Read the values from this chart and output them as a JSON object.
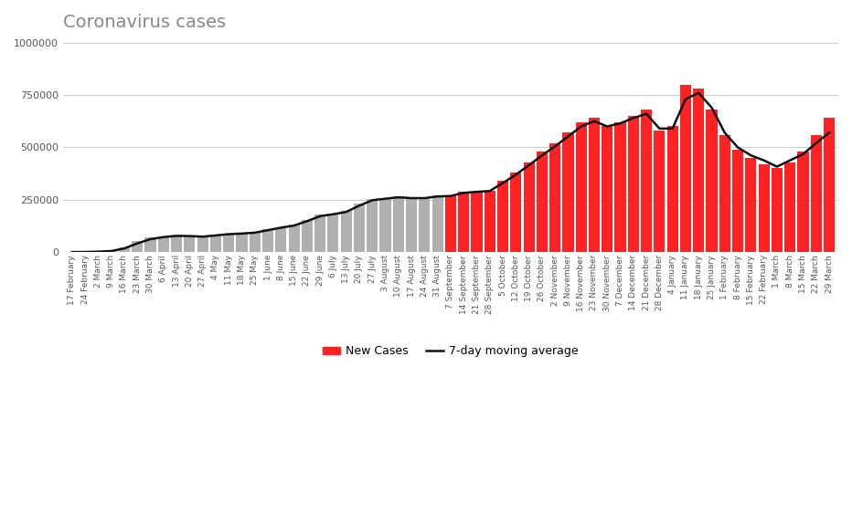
{
  "title": "Coronavirus cases",
  "title_color": "#888888",
  "title_fontsize": 14,
  "bar_color_early": "#b0b0b0",
  "bar_color_late": "#ff2222",
  "line_color": "#111111",
  "background_color": "#ffffff",
  "grid_color": "#cccccc",
  "ylim": [
    0,
    1000000
  ],
  "yticks": [
    0,
    250000,
    500000,
    750000,
    1000000
  ],
  "ytick_labels": [
    "0",
    "250000",
    "500000",
    "750000",
    "1000000"
  ],
  "legend_new_cases": "New Cases",
  "legend_ma": "7-day moving average",
  "dates": [
    "17 February",
    "24 February",
    "2 March",
    "9 March",
    "16 March",
    "23 March",
    "30 March",
    "6 April",
    "13 April",
    "20 April",
    "27 April",
    "4 May",
    "11 May",
    "18 May",
    "25 May",
    "1 June",
    "8 June",
    "15 June",
    "22 June",
    "29 June",
    "6 July",
    "13 July",
    "20 July",
    "27 July",
    "3 August",
    "10 August",
    "17 August",
    "24 August",
    "31 August",
    "7 September",
    "14 September",
    "21 September",
    "28 September",
    "5 October",
    "12 October",
    "19 October",
    "26 October",
    "2 November",
    "9 November",
    "16 November",
    "23 November",
    "30 November",
    "7 December",
    "14 December",
    "21 December",
    "28 December",
    "4 January",
    "11 January",
    "18 January",
    "25 January",
    "1 February",
    "8 February",
    "15 February",
    "22 February",
    "1 March",
    "8 March",
    "15 March",
    "22 March",
    "29 March"
  ],
  "new_cases": [
    500,
    1200,
    3000,
    7000,
    25000,
    55000,
    70000,
    75000,
    80000,
    78000,
    72000,
    82000,
    88000,
    90000,
    95000,
    110000,
    120000,
    130000,
    155000,
    180000,
    185000,
    195000,
    230000,
    255000,
    260000,
    265000,
    260000,
    260000,
    270000,
    270000,
    290000,
    290000,
    295000,
    340000,
    380000,
    430000,
    480000,
    520000,
    570000,
    620000,
    640000,
    600000,
    620000,
    650000,
    680000,
    580000,
    600000,
    800000,
    780000,
    680000,
    560000,
    490000,
    450000,
    420000,
    400000,
    430000,
    480000,
    560000,
    640000
  ],
  "moving_avg": [
    400,
    900,
    2500,
    5500,
    18000,
    42000,
    62000,
    72000,
    78000,
    77000,
    74000,
    80000,
    86000,
    89000,
    93000,
    105000,
    117000,
    127000,
    148000,
    172000,
    181000,
    192000,
    222000,
    248000,
    255000,
    262000,
    258000,
    258000,
    266000,
    268000,
    283000,
    288000,
    292000,
    330000,
    370000,
    415000,
    462000,
    505000,
    552000,
    600000,
    625000,
    600000,
    615000,
    640000,
    660000,
    590000,
    590000,
    730000,
    760000,
    690000,
    570000,
    500000,
    462000,
    438000,
    408000,
    438000,
    468000,
    520000,
    570000
  ],
  "transition_index": 29
}
